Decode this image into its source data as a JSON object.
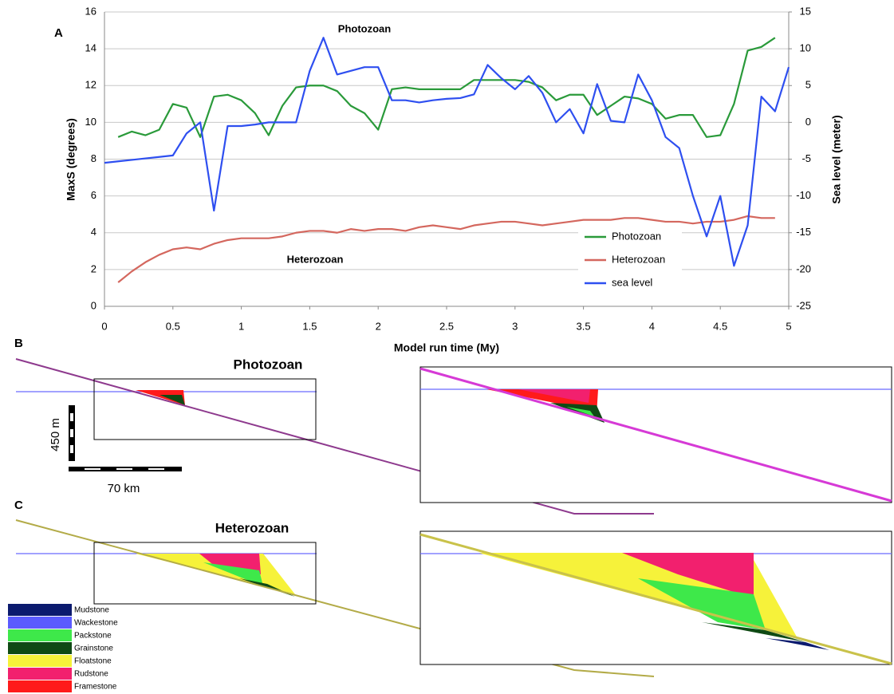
{
  "chart_data": {
    "type": "line",
    "panel_label": "A",
    "x_label": "Model run time (My)",
    "y_label": "MaxS (degrees)",
    "y2_label": "Sea level (meter)",
    "x": [
      0,
      0.1,
      0.2,
      0.3,
      0.4,
      0.5,
      0.6,
      0.7,
      0.8,
      0.9,
      1,
      1.1,
      1.2,
      1.3,
      1.4,
      1.5,
      1.6,
      1.7,
      1.8,
      1.9,
      2,
      2.1,
      2.2,
      2.3,
      2.4,
      2.5,
      2.6,
      2.7,
      2.8,
      2.9,
      3,
      3.1,
      3.2,
      3.3,
      3.4,
      3.5,
      3.6,
      3.7,
      3.8,
      3.9,
      4,
      4.1,
      4.2,
      4.3,
      4.4,
      4.5,
      4.6,
      4.7,
      4.8,
      4.9,
      5
    ],
    "series": [
      {
        "name": "Photozoan",
        "color": "#2a9a3a",
        "values": [
          null,
          9.2,
          9.5,
          9.3,
          9.6,
          11.0,
          10.8,
          9.2,
          11.4,
          11.5,
          11.2,
          10.5,
          9.3,
          10.9,
          11.9,
          12.0,
          12.0,
          11.7,
          10.9,
          10.5,
          9.6,
          11.8,
          11.9,
          11.8,
          11.8,
          11.8,
          11.8,
          12.3,
          12.3,
          12.3,
          12.3,
          12.2,
          11.9,
          11.2,
          11.5,
          11.5,
          10.4,
          10.9,
          11.4,
          11.3,
          11.0,
          10.2,
          10.4,
          10.4,
          9.2,
          9.3,
          11.0,
          13.9,
          14.1,
          14.6,
          null
        ]
      },
      {
        "name": "Heterozoan",
        "color": "#d4675e",
        "values": [
          null,
          1.3,
          1.9,
          2.4,
          2.8,
          3.1,
          3.2,
          3.1,
          3.4,
          3.6,
          3.7,
          3.7,
          3.7,
          3.8,
          4.0,
          4.1,
          4.1,
          4.0,
          4.2,
          4.1,
          4.2,
          4.2,
          4.1,
          4.3,
          4.4,
          4.3,
          4.2,
          4.4,
          4.5,
          4.6,
          4.6,
          4.5,
          4.4,
          4.5,
          4.6,
          4.7,
          4.7,
          4.7,
          4.8,
          4.8,
          4.7,
          4.6,
          4.6,
          4.5,
          4.6,
          4.6,
          4.7,
          4.9,
          4.8,
          4.8,
          null
        ]
      },
      {
        "name": "sea level",
        "color": "#2e4ff0",
        "axis": "y2",
        "values": [
          -5.5,
          -5.3,
          -5.1,
          -4.9,
          -4.7,
          -4.5,
          -1.5,
          0,
          -12,
          -0.5,
          -0.5,
          -0.3,
          0,
          0,
          0,
          7,
          11.5,
          6.5,
          7,
          7.5,
          7.5,
          3,
          3,
          2.7,
          3,
          3.2,
          3.3,
          3.8,
          7.8,
          6,
          4.5,
          6.3,
          4,
          0,
          1.8,
          -1.5,
          5.2,
          0.2,
          0,
          6.5,
          3,
          -2,
          -3.5,
          -10,
          -15.5,
          -10,
          -19.5,
          -14,
          3.5,
          1.5,
          7.5
        ]
      }
    ],
    "annotations": [
      "Photozoan",
      "Heterozoan"
    ],
    "xlim": [
      0,
      5
    ],
    "xticks": [
      0,
      0.5,
      1,
      1.5,
      2,
      2.5,
      3,
      3.5,
      4,
      4.5,
      5
    ],
    "ylim": [
      0,
      16
    ],
    "yticks": [
      0,
      2,
      4,
      6,
      8,
      10,
      12,
      14,
      16
    ],
    "y2lim": [
      -25,
      15
    ],
    "y2ticks": [
      -25,
      -20,
      -15,
      -10,
      -5,
      0,
      5,
      10,
      15
    ],
    "grid": true,
    "legend": "lower right"
  },
  "sections": [
    {
      "label": "B",
      "title": "Photozoan",
      "color": "#8e3a8e",
      "zoom_color": "#d63ad6"
    },
    {
      "label": "C",
      "title": "Heterozoan",
      "color": "#b3ab48",
      "zoom_color": "#c9c24a"
    }
  ],
  "scale_bar": {
    "vertical": "450 m",
    "horizontal": "70 km"
  },
  "facies": [
    {
      "name": "Mudstone",
      "color": "#0b1a6e"
    },
    {
      "name": "Wackestone",
      "color": "#5b5bff"
    },
    {
      "name": "Packstone",
      "color": "#3ee84a"
    },
    {
      "name": "Grainstone",
      "color": "#0f4a14"
    },
    {
      "name": "Floatstone",
      "color": "#f6f23a"
    },
    {
      "name": "Rudstone",
      "color": "#f2206e"
    },
    {
      "name": "Framestone",
      "color": "#ff1a1a"
    }
  ]
}
